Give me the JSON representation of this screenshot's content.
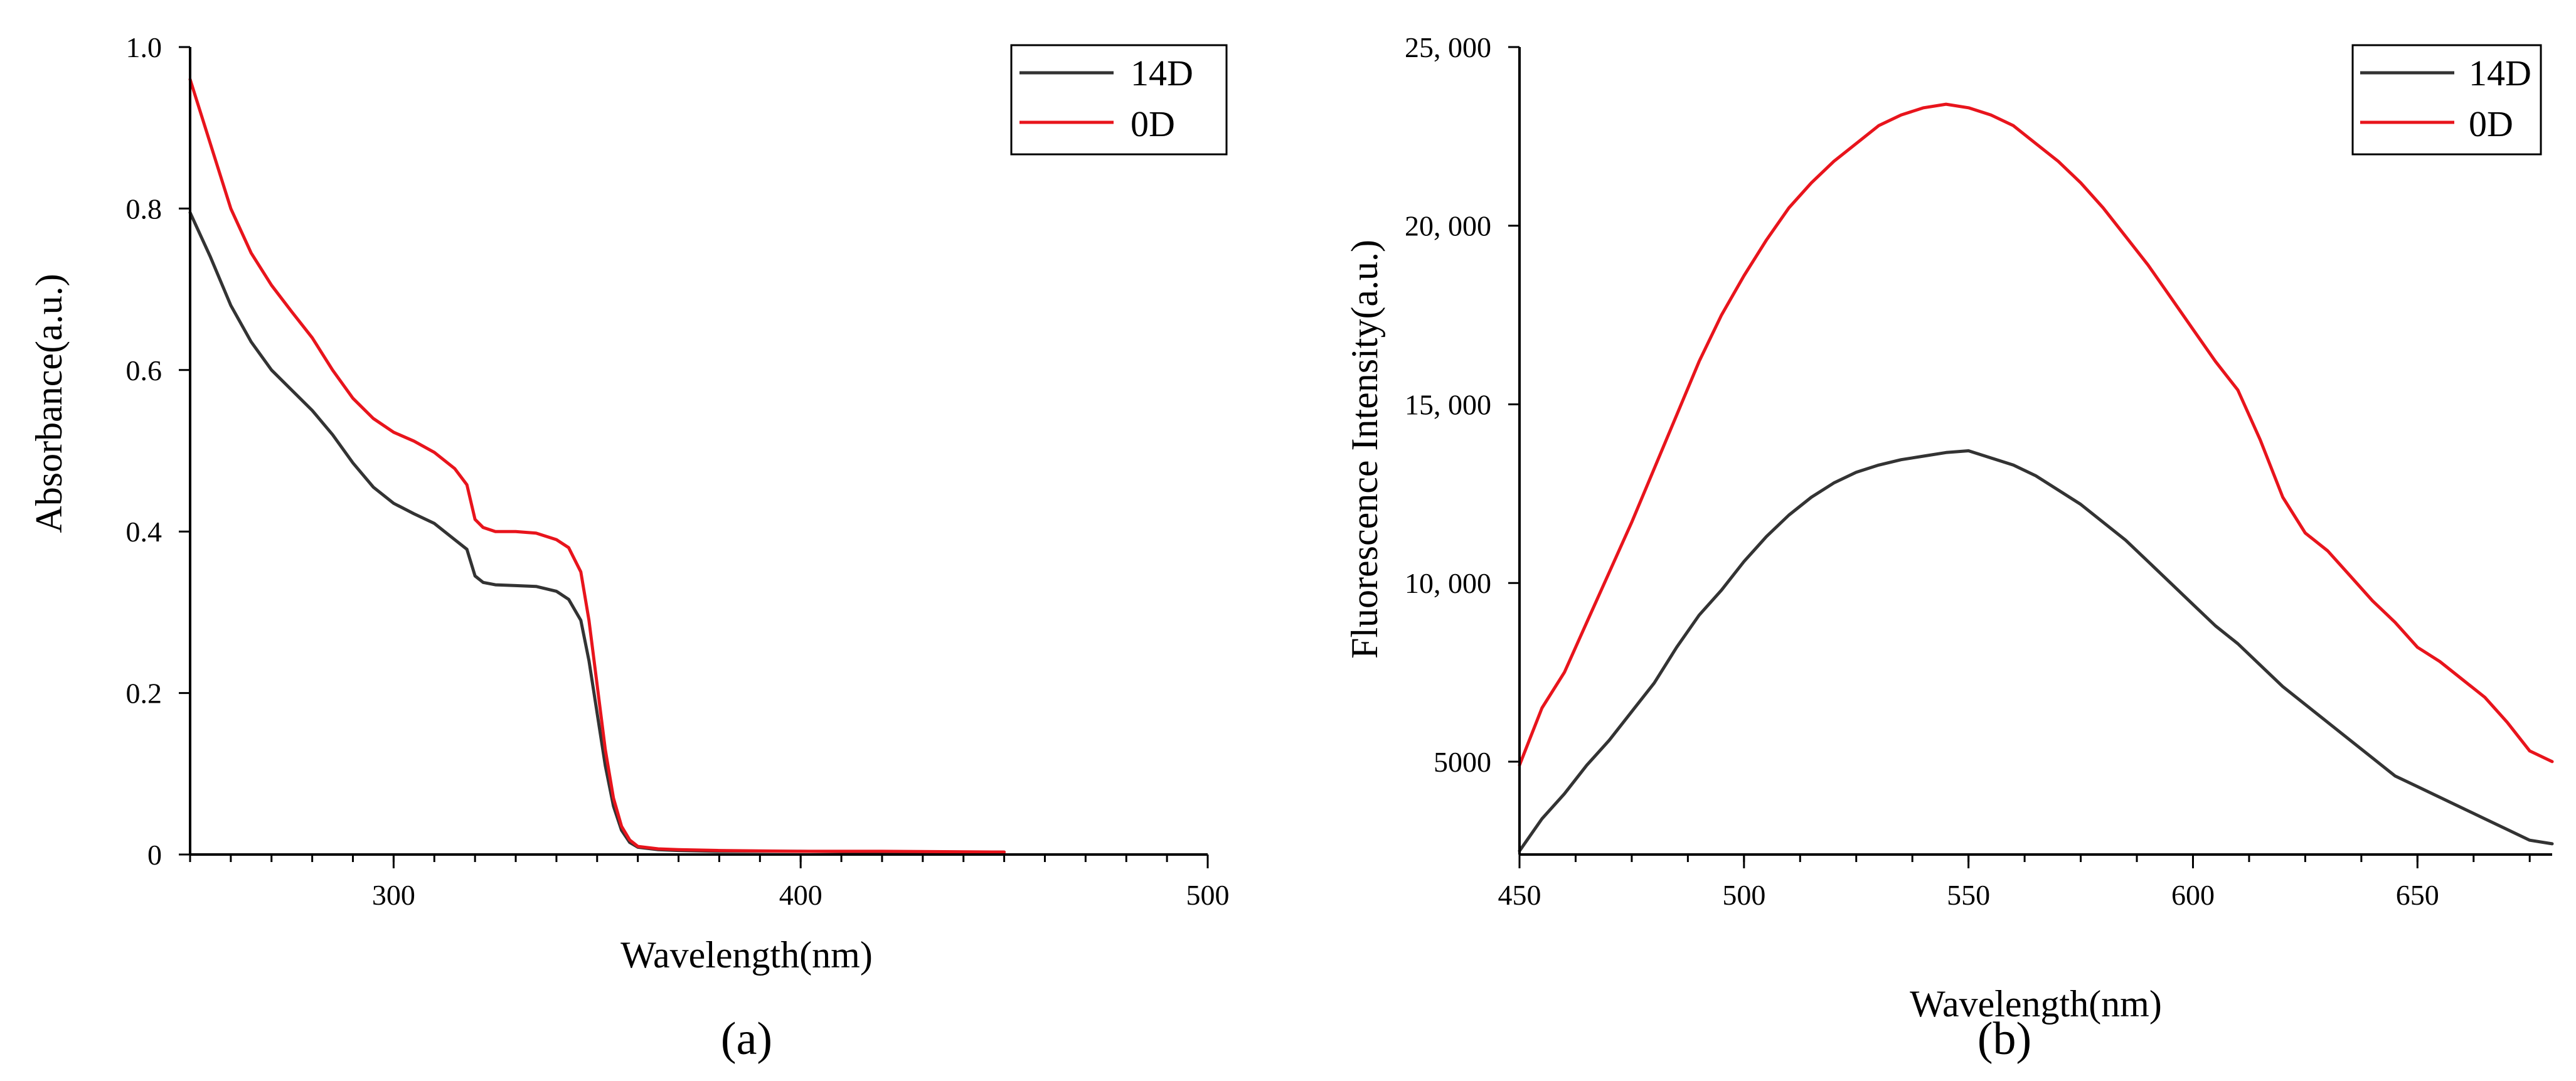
{
  "figure": {
    "panels": [
      {
        "label": "(a)"
      },
      {
        "label": "(b)"
      }
    ]
  },
  "chart_data": [
    {
      "type": "line",
      "panel_label": "(a)",
      "xlabel": "Wavelength(nm)",
      "ylabel": "Absorbance(a.u.)",
      "xlim": [
        250,
        500
      ],
      "ylim": [
        0,
        1.0
      ],
      "xticks": [
        300,
        400,
        500
      ],
      "xtick_labels": [
        "300",
        "400",
        "500"
      ],
      "xminor_step": 10,
      "yticks": [
        0,
        0.2,
        0.4,
        0.6,
        0.8,
        1.0
      ],
      "ytick_labels": [
        "0",
        "0.2",
        "0.4",
        "0.6",
        "0.8",
        "1.0"
      ],
      "grid": false,
      "legend_position": "top-right",
      "series": [
        {
          "name": "14D",
          "color": "#333333",
          "x": [
            250,
            255,
            260,
            265,
            270,
            275,
            280,
            285,
            290,
            295,
            300,
            305,
            310,
            315,
            318,
            320,
            322,
            325,
            330,
            335,
            340,
            343,
            346,
            348,
            350,
            352,
            354,
            356,
            358,
            360,
            365,
            370,
            380,
            400,
            420,
            450
          ],
          "y": [
            0.795,
            0.74,
            0.68,
            0.635,
            0.6,
            0.575,
            0.55,
            0.52,
            0.485,
            0.455,
            0.435,
            0.422,
            0.41,
            0.39,
            0.378,
            0.345,
            0.337,
            0.334,
            0.333,
            0.332,
            0.326,
            0.316,
            0.29,
            0.24,
            0.175,
            0.11,
            0.06,
            0.03,
            0.015,
            0.009,
            0.006,
            0.005,
            0.004,
            0.004,
            0.003,
            0.003
          ]
        },
        {
          "name": "0D",
          "color": "#e8141c",
          "x": [
            250,
            255,
            260,
            265,
            270,
            275,
            280,
            285,
            290,
            295,
            300,
            305,
            310,
            315,
            318,
            320,
            322,
            325,
            330,
            335,
            340,
            343,
            346,
            348,
            350,
            352,
            354,
            356,
            358,
            360,
            365,
            370,
            380,
            400,
            420,
            450
          ],
          "y": [
            0.96,
            0.88,
            0.8,
            0.745,
            0.705,
            0.672,
            0.64,
            0.6,
            0.565,
            0.54,
            0.523,
            0.512,
            0.498,
            0.478,
            0.458,
            0.415,
            0.405,
            0.4,
            0.4,
            0.398,
            0.39,
            0.38,
            0.35,
            0.29,
            0.21,
            0.13,
            0.07,
            0.035,
            0.018,
            0.01,
            0.007,
            0.006,
            0.005,
            0.004,
            0.004,
            0.003
          ]
        }
      ]
    },
    {
      "type": "line",
      "panel_label": "(b)",
      "xlabel": "Wavelength(nm)",
      "ylabel": "Fluorescence Intensity(a.u.)",
      "xlim": [
        450,
        680
      ],
      "ylim": [
        2400,
        25000
      ],
      "xticks": [
        450,
        500,
        550,
        600,
        650
      ],
      "xtick_labels": [
        "450",
        "500",
        "550",
        "600",
        "650"
      ],
      "xminor_step": 12.5,
      "yticks": [
        5000,
        10000,
        15000,
        20000,
        25000
      ],
      "ytick_labels": [
        "5000",
        "10, 000",
        "15, 000",
        "20, 000",
        "25, 000"
      ],
      "grid": false,
      "legend_position": "top-right",
      "series": [
        {
          "name": "14D",
          "color": "#333333",
          "x": [
            450,
            455,
            460,
            465,
            470,
            475,
            480,
            485,
            490,
            495,
            500,
            505,
            510,
            515,
            520,
            525,
            530,
            535,
            540,
            545,
            550,
            555,
            560,
            565,
            570,
            575,
            580,
            585,
            590,
            595,
            600,
            605,
            610,
            615,
            620,
            625,
            630,
            635,
            640,
            645,
            650,
            655,
            660,
            665,
            670,
            675,
            680
          ],
          "y": [
            2500,
            3400,
            4100,
            4900,
            5600,
            6400,
            7200,
            8200,
            9100,
            9800,
            10600,
            11300,
            11900,
            12400,
            12800,
            13100,
            13300,
            13450,
            13550,
            13650,
            13700,
            13500,
            13300,
            13000,
            12600,
            12200,
            11700,
            11200,
            10600,
            10000,
            9400,
            8800,
            8300,
            7700,
            7100,
            6600,
            6100,
            5600,
            5100,
            4600,
            4300,
            4000,
            3700,
            3400,
            3100,
            2800,
            2700
          ]
        },
        {
          "name": "0D",
          "color": "#e8141c",
          "x": [
            450,
            455,
            460,
            465,
            470,
            475,
            480,
            485,
            490,
            495,
            500,
            505,
            510,
            515,
            520,
            525,
            530,
            535,
            540,
            545,
            550,
            555,
            560,
            565,
            570,
            575,
            580,
            585,
            590,
            595,
            600,
            605,
            610,
            615,
            620,
            625,
            630,
            635,
            640,
            645,
            650,
            655,
            660,
            665,
            670,
            675,
            680
          ],
          "y": [
            4900,
            6500,
            7500,
            8900,
            10300,
            11700,
            13200,
            14700,
            16200,
            17500,
            18600,
            19600,
            20500,
            21200,
            21800,
            22300,
            22800,
            23100,
            23300,
            23400,
            23300,
            23100,
            22800,
            22300,
            21800,
            21200,
            20500,
            19700,
            18900,
            18000,
            17100,
            16200,
            15400,
            14000,
            12400,
            11400,
            10900,
            10200,
            9500,
            8900,
            8200,
            7800,
            7300,
            6800,
            6100,
            5300,
            5000
          ]
        }
      ]
    }
  ]
}
